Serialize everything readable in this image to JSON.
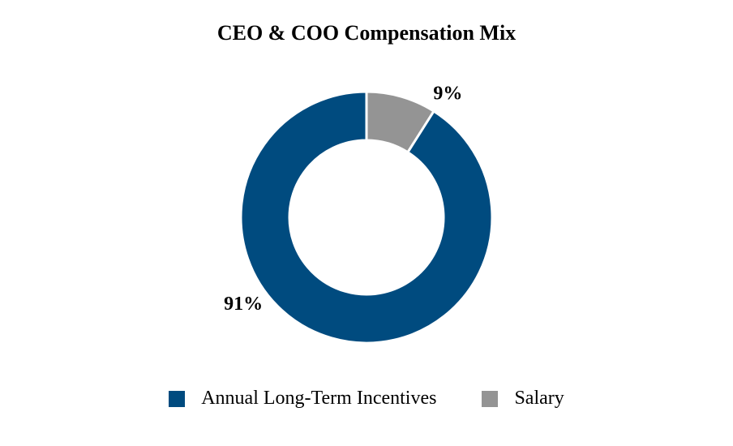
{
  "chart_data": {
    "type": "pie",
    "title": "CEO & COO Compensation Mix",
    "donut": true,
    "legend_position": "bottom",
    "slices": [
      {
        "label": "Salary",
        "value": 9,
        "display": "9%",
        "color": "#949494"
      },
      {
        "label": "Annual Long-Term Incentives",
        "value": 91,
        "display": "91%",
        "color": "#004b7f"
      }
    ],
    "legend": [
      {
        "label": "Annual Long-Term Incentives",
        "color": "#004b7f"
      },
      {
        "label": "Salary",
        "color": "#949494"
      }
    ]
  }
}
